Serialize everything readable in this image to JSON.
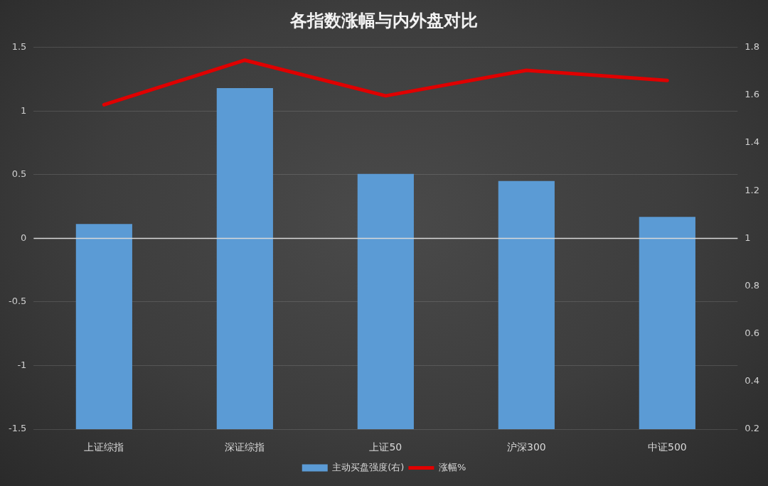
{
  "chart_data": {
    "type": "bar",
    "title": "各指数涨幅与内外盘对比",
    "categories": [
      "上证综指",
      "深证综指",
      "上证50",
      "沪深300",
      "中证500"
    ],
    "series": [
      {
        "name": "主动买盘强度(右)",
        "axis": "y2",
        "color": "#5b9bd5",
        "values": [
          1.06,
          1.63,
          1.27,
          1.24,
          1.09
        ]
      },
      {
        "name": "涨幅%",
        "type": "line",
        "color": "#e00000",
        "values": [
          1.05,
          1.4,
          1.12,
          1.32,
          1.24
        ]
      }
    ],
    "ylim": [
      -1.5,
      1.5
    ],
    "yticks": [
      -1.5,
      -1,
      -0.5,
      0,
      0.5,
      1,
      1.5
    ],
    "y2lim": [
      0.2,
      1.8
    ],
    "y2ticks": [
      0.2,
      0.4,
      0.6,
      0.8,
      1,
      1.2,
      1.4,
      1.6,
      1.8
    ],
    "ref_lines": [
      {
        "axis": "y",
        "value": 0,
        "color": "#d9d9d9"
      }
    ],
    "grid": "y",
    "legend": "bottom",
    "marker": "none",
    "line_style": "solid"
  }
}
